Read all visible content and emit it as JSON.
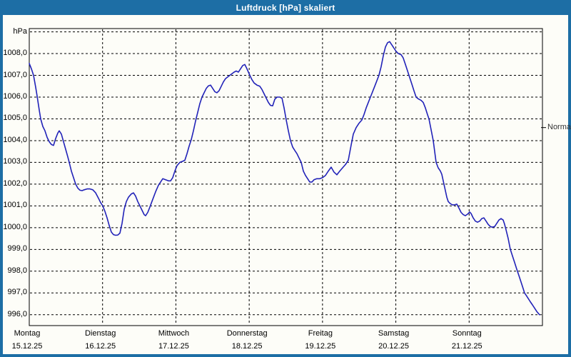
{
  "window": {
    "title": "Luftdruck [hPa] skaliert"
  },
  "colors": {
    "titlebar_bg": "#1d6ea5",
    "window_border": "#1d6ea5",
    "content_bg": "#fdfdf8",
    "plot_border": "#000000",
    "grid": "#000000",
    "line": "#2122b8",
    "title_text": "#ffffff",
    "normal_text": "#333333"
  },
  "chart_data": {
    "type": "line",
    "title": "Luftdruck [hPa] skaliert",
    "ylabel": "hPa",
    "grid": true,
    "ylim": [
      995.5,
      1009.15
    ],
    "x_range_days": 7,
    "y_grid_values": [
      996,
      997,
      998,
      999,
      1000,
      1001,
      1002,
      1003,
      1004,
      1005,
      1006,
      1007,
      1008,
      1009
    ],
    "y_ticks": [
      {
        "value": 1008,
        "label": "1008,0"
      },
      {
        "value": 1007,
        "label": "1007,0"
      },
      {
        "value": 1006,
        "label": "1006,0"
      },
      {
        "value": 1005,
        "label": "1005,0"
      },
      {
        "value": 1004,
        "label": "1004,0"
      },
      {
        "value": 1003,
        "label": "1003,0"
      },
      {
        "value": 1002,
        "label": "1002,0"
      },
      {
        "value": 1001,
        "label": "1001,0"
      },
      {
        "value": 1000,
        "label": "1000,0"
      },
      {
        "value": 999,
        "label": "999,0"
      },
      {
        "value": 998,
        "label": "998,0"
      },
      {
        "value": 997,
        "label": "997,0"
      },
      {
        "value": 996,
        "label": "996,0"
      }
    ],
    "x_days": [
      {
        "name": "Montag",
        "date": "15.12.25"
      },
      {
        "name": "Dienstag",
        "date": "16.12.25"
      },
      {
        "name": "Mittwoch",
        "date": "17.12.25"
      },
      {
        "name": "Donnerstag",
        "date": "18.12.25"
      },
      {
        "name": "Freitag",
        "date": "19.12.25"
      },
      {
        "name": "Samstag",
        "date": "20.12.25"
      },
      {
        "name": "Sonntag",
        "date": "21.12.25"
      }
    ],
    "normal": {
      "label": "Normal",
      "value": 1004.6
    },
    "series": [
      {
        "name": "Luftdruck [hPa]",
        "unit": "hPa",
        "points": [
          [
            0.0,
            1007.55
          ],
          [
            0.029,
            1007.3
          ],
          [
            0.058,
            1007.0
          ],
          [
            0.088,
            1006.45
          ],
          [
            0.107,
            1006.05
          ],
          [
            0.136,
            1005.4
          ],
          [
            0.156,
            1005.0
          ],
          [
            0.185,
            1004.65
          ],
          [
            0.214,
            1004.45
          ],
          [
            0.243,
            1004.15
          ],
          [
            0.273,
            1003.95
          ],
          [
            0.302,
            1003.82
          ],
          [
            0.331,
            1003.78
          ],
          [
            0.36,
            1004.1
          ],
          [
            0.389,
            1004.35
          ],
          [
            0.409,
            1004.45
          ],
          [
            0.438,
            1004.3
          ],
          [
            0.467,
            1003.95
          ],
          [
            0.497,
            1003.6
          ],
          [
            0.526,
            1003.25
          ],
          [
            0.545,
            1003.0
          ],
          [
            0.574,
            1002.6
          ],
          [
            0.604,
            1002.3
          ],
          [
            0.633,
            1002.0
          ],
          [
            0.662,
            1001.82
          ],
          [
            0.691,
            1001.72
          ],
          [
            0.72,
            1001.7
          ],
          [
            0.75,
            1001.74
          ],
          [
            0.789,
            1001.78
          ],
          [
            0.828,
            1001.78
          ],
          [
            0.866,
            1001.74
          ],
          [
            0.905,
            1001.6
          ],
          [
            0.944,
            1001.35
          ],
          [
            0.974,
            1001.15
          ],
          [
            1.003,
            1001.0
          ],
          [
            1.032,
            1000.75
          ],
          [
            1.061,
            1000.45
          ],
          [
            1.09,
            1000.1
          ],
          [
            1.12,
            999.8
          ],
          [
            1.149,
            999.68
          ],
          [
            1.178,
            999.65
          ],
          [
            1.207,
            999.66
          ],
          [
            1.236,
            999.75
          ],
          [
            1.266,
            1000.2
          ],
          [
            1.295,
            1000.85
          ],
          [
            1.324,
            1001.2
          ],
          [
            1.353,
            1001.4
          ],
          [
            1.392,
            1001.55
          ],
          [
            1.421,
            1001.6
          ],
          [
            1.451,
            1001.45
          ],
          [
            1.48,
            1001.2
          ],
          [
            1.509,
            1001.0
          ],
          [
            1.538,
            1000.8
          ],
          [
            1.567,
            1000.6
          ],
          [
            1.587,
            1000.55
          ],
          [
            1.616,
            1000.7
          ],
          [
            1.645,
            1000.95
          ],
          [
            1.684,
            1001.3
          ],
          [
            1.723,
            1001.65
          ],
          [
            1.762,
            1001.95
          ],
          [
            1.791,
            1002.1
          ],
          [
            1.821,
            1002.25
          ],
          [
            1.86,
            1002.2
          ],
          [
            1.898,
            1002.15
          ],
          [
            1.928,
            1002.15
          ],
          [
            1.957,
            1002.3
          ],
          [
            1.986,
            1002.6
          ],
          [
            2.015,
            1002.85
          ],
          [
            2.054,
            1003.0
          ],
          [
            2.093,
            1003.05
          ],
          [
            2.122,
            1003.1
          ],
          [
            2.152,
            1003.4
          ],
          [
            2.181,
            1003.75
          ],
          [
            2.21,
            1004.05
          ],
          [
            2.239,
            1004.45
          ],
          [
            2.268,
            1004.9
          ],
          [
            2.298,
            1005.3
          ],
          [
            2.327,
            1005.7
          ],
          [
            2.356,
            1006.0
          ],
          [
            2.385,
            1006.2
          ],
          [
            2.414,
            1006.4
          ],
          [
            2.444,
            1006.52
          ],
          [
            2.473,
            1006.55
          ],
          [
            2.502,
            1006.4
          ],
          [
            2.531,
            1006.25
          ],
          [
            2.56,
            1006.2
          ],
          [
            2.59,
            1006.3
          ],
          [
            2.619,
            1006.5
          ],
          [
            2.648,
            1006.7
          ],
          [
            2.677,
            1006.85
          ],
          [
            2.716,
            1006.95
          ],
          [
            2.755,
            1007.05
          ],
          [
            2.794,
            1007.15
          ],
          [
            2.823,
            1007.2
          ],
          [
            2.853,
            1007.15
          ],
          [
            2.882,
            1007.3
          ],
          [
            2.911,
            1007.45
          ],
          [
            2.94,
            1007.5
          ],
          [
            2.969,
            1007.3
          ],
          [
            3.008,
            1007.0
          ],
          [
            3.038,
            1006.8
          ],
          [
            3.067,
            1006.65
          ],
          [
            3.106,
            1006.55
          ],
          [
            3.145,
            1006.5
          ],
          [
            3.174,
            1006.35
          ],
          [
            3.203,
            1006.15
          ],
          [
            3.232,
            1005.95
          ],
          [
            3.262,
            1005.75
          ],
          [
            3.291,
            1005.62
          ],
          [
            3.32,
            1005.6
          ],
          [
            3.349,
            1005.9
          ],
          [
            3.378,
            1006.0
          ],
          [
            3.417,
            1006.0
          ],
          [
            3.447,
            1005.95
          ],
          [
            3.476,
            1005.5
          ],
          [
            3.505,
            1004.95
          ],
          [
            3.534,
            1004.45
          ],
          [
            3.563,
            1004.0
          ],
          [
            3.593,
            1003.7
          ],
          [
            3.622,
            1003.55
          ],
          [
            3.651,
            1003.4
          ],
          [
            3.68,
            1003.2
          ],
          [
            3.709,
            1003.0
          ],
          [
            3.739,
            1002.6
          ],
          [
            3.768,
            1002.4
          ],
          [
            3.797,
            1002.25
          ],
          [
            3.826,
            1002.1
          ],
          [
            3.855,
            1002.1
          ],
          [
            3.884,
            1002.2
          ],
          [
            3.923,
            1002.25
          ],
          [
            3.962,
            1002.25
          ],
          [
            4.001,
            1002.3
          ],
          [
            4.04,
            1002.4
          ],
          [
            4.079,
            1002.6
          ],
          [
            4.118,
            1002.78
          ],
          [
            4.157,
            1002.55
          ],
          [
            4.196,
            1002.43
          ],
          [
            4.235,
            1002.6
          ],
          [
            4.274,
            1002.75
          ],
          [
            4.313,
            1002.9
          ],
          [
            4.352,
            1003.1
          ],
          [
            4.391,
            1003.8
          ],
          [
            4.42,
            1004.3
          ],
          [
            4.459,
            1004.6
          ],
          [
            4.498,
            1004.8
          ],
          [
            4.537,
            1004.95
          ],
          [
            4.566,
            1005.2
          ],
          [
            4.595,
            1005.5
          ],
          [
            4.624,
            1005.75
          ],
          [
            4.654,
            1006.0
          ],
          [
            4.683,
            1006.25
          ],
          [
            4.712,
            1006.5
          ],
          [
            4.741,
            1006.75
          ],
          [
            4.77,
            1007.0
          ],
          [
            4.8,
            1007.4
          ],
          [
            4.829,
            1007.9
          ],
          [
            4.858,
            1008.3
          ],
          [
            4.887,
            1008.5
          ],
          [
            4.916,
            1008.55
          ],
          [
            4.946,
            1008.4
          ],
          [
            4.975,
            1008.25
          ],
          [
            5.004,
            1008.1
          ],
          [
            5.033,
            1008.0
          ],
          [
            5.072,
            1007.95
          ],
          [
            5.101,
            1007.8
          ],
          [
            5.131,
            1007.5
          ],
          [
            5.16,
            1007.2
          ],
          [
            5.189,
            1006.9
          ],
          [
            5.218,
            1006.6
          ],
          [
            5.247,
            1006.3
          ],
          [
            5.277,
            1006.0
          ],
          [
            5.306,
            1005.92
          ],
          [
            5.345,
            1005.85
          ],
          [
            5.374,
            1005.75
          ],
          [
            5.403,
            1005.5
          ],
          [
            5.432,
            1005.2
          ],
          [
            5.452,
            1005.0
          ],
          [
            5.481,
            1004.5
          ],
          [
            5.51,
            1004.0
          ],
          [
            5.53,
            1003.5
          ],
          [
            5.549,
            1003.0
          ],
          [
            5.578,
            1002.75
          ],
          [
            5.608,
            1002.6
          ],
          [
            5.627,
            1002.45
          ],
          [
            5.656,
            1002.0
          ],
          [
            5.676,
            1001.7
          ],
          [
            5.695,
            1001.4
          ],
          [
            5.715,
            1001.2
          ],
          [
            5.744,
            1001.1
          ],
          [
            5.773,
            1001.05
          ],
          [
            5.802,
            1001.05
          ],
          [
            5.832,
            1001.08
          ],
          [
            5.861,
            1000.9
          ],
          [
            5.89,
            1000.7
          ],
          [
            5.919,
            1000.6
          ],
          [
            5.948,
            1000.55
          ],
          [
            5.978,
            1000.62
          ],
          [
            6.007,
            1000.72
          ],
          [
            6.026,
            1000.65
          ],
          [
            6.055,
            1000.45
          ],
          [
            6.085,
            1000.3
          ],
          [
            6.114,
            1000.25
          ],
          [
            6.143,
            1000.3
          ],
          [
            6.172,
            1000.42
          ],
          [
            6.201,
            1000.45
          ],
          [
            6.231,
            1000.3
          ],
          [
            6.26,
            1000.15
          ],
          [
            6.289,
            1000.05
          ],
          [
            6.318,
            1000.02
          ],
          [
            6.348,
            1000.05
          ],
          [
            6.377,
            1000.2
          ],
          [
            6.406,
            1000.35
          ],
          [
            6.435,
            1000.42
          ],
          [
            6.465,
            1000.35
          ],
          [
            6.484,
            1000.15
          ],
          [
            6.503,
            999.9
          ],
          [
            6.533,
            999.5
          ],
          [
            6.562,
            999.0
          ],
          [
            6.591,
            998.7
          ],
          [
            6.62,
            998.4
          ],
          [
            6.649,
            998.1
          ],
          [
            6.679,
            997.8
          ],
          [
            6.708,
            997.5
          ],
          [
            6.737,
            997.2
          ],
          [
            6.756,
            997.0
          ],
          [
            6.776,
            996.9
          ],
          [
            6.805,
            996.75
          ],
          [
            6.834,
            996.6
          ],
          [
            6.864,
            996.45
          ],
          [
            6.893,
            996.3
          ],
          [
            6.922,
            996.15
          ],
          [
            6.951,
            996.03
          ],
          [
            6.961,
            996.0
          ]
        ]
      }
    ]
  }
}
